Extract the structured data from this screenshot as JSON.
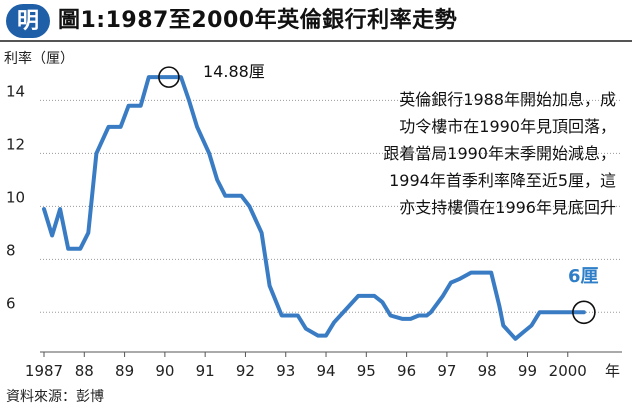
{
  "header": {
    "logo_text": "明",
    "title": "圖1:1987至2000年英倫銀行利率走勢"
  },
  "axis": {
    "y_label": "利率（厘）"
  },
  "source": "資料來源：彭博",
  "annotation": {
    "lines": [
      "英倫銀行1988年開始加息，成",
      "功令樓市在1990年見頂回落，",
      "跟着當局1990年末季開始減息，",
      "1994年首季利率降至近5厘，這",
      "亦支持樓價在1996年見底回升"
    ],
    "peak_label": "14.88厘",
    "end_label": "6厘"
  },
  "colors": {
    "line": "#3a7cc4",
    "logo": "#1f5fa8",
    "end_label": "#2f7fc8"
  },
  "chart_data": {
    "type": "line",
    "title": "圖1:1987至2000年英倫銀行利率走勢",
    "xlabel": "年",
    "ylabel": "利率（厘）",
    "x_tick_labels": [
      "1987",
      "88",
      "89",
      "90",
      "91",
      "92",
      "93",
      "94",
      "95",
      "96",
      "97",
      "98",
      "99",
      "2000"
    ],
    "x_unit_label": "年",
    "xlim": [
      1987,
      2000.8
    ],
    "ylim": [
      4.5,
      15.3
    ],
    "y_ticks": [
      6,
      8,
      10,
      12,
      14
    ],
    "grid": "horizontal",
    "x": [
      1987.0,
      1987.2,
      1987.4,
      1987.6,
      1987.9,
      1988.1,
      1988.3,
      1988.6,
      1988.9,
      1989.1,
      1989.4,
      1989.6,
      1989.9,
      1990.1,
      1990.4,
      1990.6,
      1990.8,
      1991.1,
      1991.3,
      1991.5,
      1991.8,
      1991.9,
      1992.1,
      1992.4,
      1992.6,
      1992.9,
      1993.0,
      1993.1,
      1993.3,
      1993.5,
      1993.8,
      1994.0,
      1994.2,
      1994.5,
      1994.8,
      1995.0,
      1995.2,
      1995.4,
      1995.6,
      1995.9,
      1996.1,
      1996.3,
      1996.5,
      1996.6,
      1996.9,
      1997.1,
      1997.3,
      1997.6,
      1997.9,
      1998.1,
      1998.3,
      1998.4,
      1998.7,
      1998.9,
      1999.1,
      1999.3,
      1999.5,
      1999.7,
      2000.0,
      2000.4
    ],
    "y": [
      9.9,
      8.9,
      9.9,
      8.4,
      8.4,
      9.0,
      12.0,
      13.0,
      13.0,
      13.8,
      13.8,
      14.88,
      14.88,
      14.88,
      14.88,
      14.0,
      13.0,
      12.0,
      11.0,
      10.4,
      10.4,
      10.4,
      10.0,
      9.0,
      7.0,
      5.88,
      5.88,
      5.88,
      5.88,
      5.38,
      5.12,
      5.12,
      5.62,
      6.12,
      6.62,
      6.62,
      6.62,
      6.38,
      5.88,
      5.75,
      5.75,
      5.88,
      5.88,
      6.0,
      6.62,
      7.12,
      7.25,
      7.5,
      7.5,
      7.5,
      6.25,
      5.5,
      5.0,
      5.25,
      5.5,
      6.0,
      6.0,
      6.0,
      6.0,
      6.0
    ]
  }
}
